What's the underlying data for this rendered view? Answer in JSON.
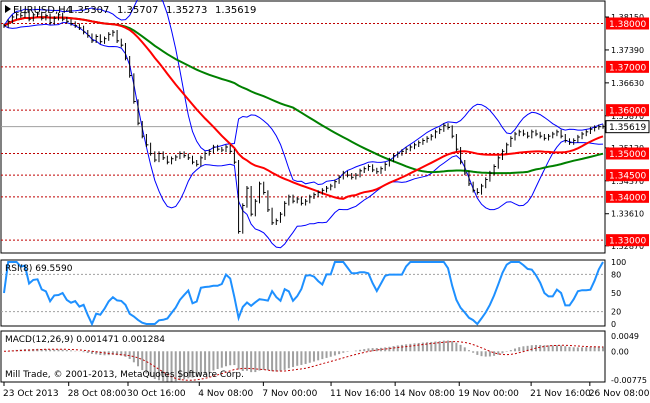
{
  "colors": {
    "background": "#ffffff",
    "frame": "#000000",
    "price_line": "#000000",
    "bollinger": "#0000ff",
    "ma_fast": "#ff0000",
    "ma_slow": "#008000",
    "level_line": "#c00000",
    "current_line": "#a0a0a0",
    "level_tag_bg": "#ff0000",
    "current_tag_bg": "#ffffff",
    "rsi_line": "#1e90ff",
    "rsi_level": "#a0a0a0",
    "macd_hist": "#a0a0a0",
    "macd_signal": "#c00000",
    "axis_text": "#000000"
  },
  "main": {
    "header": {
      "symbol": "EURUSD,H4",
      "open": "1.35307",
      "high": "1.35707",
      "low": "1.35273",
      "close": "1.35619"
    },
    "price_range": [
      1.3275,
      1.3845
    ],
    "axis_ticks": [
      "1.38150",
      "1.37390",
      "1.36630",
      "1.35870",
      "1.35130",
      "1.34370",
      "1.33610",
      "1.32870"
    ],
    "level_tags": [
      "1.38000",
      "1.37000",
      "1.36000",
      "1.35000",
      "1.34500",
      "1.34000",
      "1.33000"
    ],
    "current_price": "1.35619"
  },
  "rsi": {
    "label": "RSI(8) 69.5590",
    "range": [
      0,
      100
    ],
    "levels": [
      20,
      80
    ],
    "axis_ticks": [
      "100",
      "80",
      "50",
      "20",
      "0"
    ]
  },
  "macd": {
    "label": "MACD(12,26,9) 0.001471 0.001284",
    "range": [
      -0.0077,
      0.0049
    ],
    "axis_ticks": [
      "0.0049",
      "0.00",
      "-0.00775"
    ]
  },
  "copyright": "Mill Trade, © 2001-2013, MetaQuotes Software Corp.",
  "time_axis": [
    {
      "label": "23 Oct 2013",
      "pos": 0.0
    },
    {
      "label": "28 Oct 08:00",
      "pos": 0.108
    },
    {
      "label": "30 Oct 16:00",
      "pos": 0.207
    },
    {
      "label": "4 Nov 08:00",
      "pos": 0.326
    },
    {
      "label": "7 Nov 00:00",
      "pos": 0.433
    },
    {
      "label": "11 Nov 16:00",
      "pos": 0.546
    },
    {
      "label": "14 Nov 08:00",
      "pos": 0.653
    },
    {
      "label": "19 Nov 00:00",
      "pos": 0.76
    },
    {
      "label": "21 Nov 16:00",
      "pos": 0.88
    },
    {
      "label": "26 Nov 08:00",
      "pos": 0.978
    }
  ],
  "chart_data": {
    "type": "line",
    "title": "EURUSD,H4",
    "ylim": [
      1.3275,
      1.3845
    ],
    "x": [
      0,
      1,
      2,
      3,
      4,
      5,
      6,
      7,
      8,
      9,
      10,
      11,
      12,
      13,
      14,
      15,
      16,
      17,
      18,
      19,
      20,
      21,
      22,
      23,
      24,
      25,
      26,
      27,
      28,
      29,
      30,
      31,
      32,
      33,
      34,
      35,
      36,
      37,
      38,
      39,
      40,
      41,
      42,
      43,
      44,
      45,
      46,
      47,
      48,
      49,
      50,
      51,
      52,
      53,
      54,
      55,
      56,
      57,
      58,
      59,
      60,
      61,
      62,
      63,
      64,
      65,
      66,
      67,
      68,
      69,
      70,
      71,
      72,
      73,
      74,
      75,
      76,
      77,
      78,
      79,
      80,
      81,
      82,
      83,
      84,
      85,
      86,
      87,
      88,
      89,
      90,
      91,
      92,
      93,
      94,
      95,
      96,
      97,
      98,
      99,
      100,
      101,
      102,
      103,
      104,
      105,
      106,
      107,
      108,
      109,
      110,
      111,
      112,
      113,
      114,
      115,
      116,
      117,
      118,
      119,
      120,
      121,
      122,
      123,
      124,
      125,
      126,
      127,
      128,
      129,
      130,
      131,
      132,
      133,
      134,
      135,
      136,
      137,
      138,
      139,
      140,
      141,
      142,
      143
    ],
    "series": [
      {
        "values": [
          1.3795,
          1.3805,
          1.3815,
          1.382,
          1.3818,
          1.3825,
          1.381,
          1.382,
          1.3822,
          1.3812,
          1.3818,
          1.3802,
          1.3812,
          1.382,
          1.381,
          1.3805,
          1.38,
          1.3795,
          1.379,
          1.378,
          1.3772,
          1.376,
          1.377,
          1.3758,
          1.3765,
          1.3775,
          1.378,
          1.376,
          1.375,
          1.372,
          1.368,
          1.362,
          1.357,
          1.354,
          1.352,
          1.35,
          1.3485,
          1.35,
          1.349,
          1.348,
          1.3488,
          1.3492,
          1.35,
          1.3495,
          1.349,
          1.348,
          1.3475,
          1.349,
          1.35,
          1.3505,
          1.3515,
          1.351,
          1.3508,
          1.3515,
          1.3505,
          1.348,
          1.332,
          1.338,
          1.342,
          1.336,
          1.339,
          1.343,
          1.341,
          1.337,
          1.334,
          1.3345,
          1.336,
          1.3385,
          1.34,
          1.339,
          1.3395,
          1.3385,
          1.339,
          1.34,
          1.3405,
          1.341,
          1.3415,
          1.342,
          1.3425,
          1.3435,
          1.3445,
          1.3455,
          1.345,
          1.3445,
          1.345,
          1.346,
          1.3465,
          1.347,
          1.3462,
          1.3458,
          1.3465,
          1.3475,
          1.3485,
          1.3495,
          1.35,
          1.3505,
          1.351,
          1.3515,
          1.352,
          1.3525,
          1.353,
          1.3535,
          1.354,
          1.355,
          1.3555,
          1.3565,
          1.356,
          1.354,
          1.351,
          1.348,
          1.3455,
          1.343,
          1.3415,
          1.341,
          1.3425,
          1.344,
          1.3455,
          1.347,
          1.349,
          1.3505,
          1.352,
          1.3535,
          1.3545,
          1.355,
          1.3545,
          1.354,
          1.355,
          1.3545,
          1.354,
          1.3535,
          1.354,
          1.3545,
          1.355,
          1.354,
          1.353,
          1.3525,
          1.353,
          1.3538,
          1.3545,
          1.355,
          1.3556,
          1.356,
          1.3562,
          1.3562
        ]
      }
    ]
  }
}
